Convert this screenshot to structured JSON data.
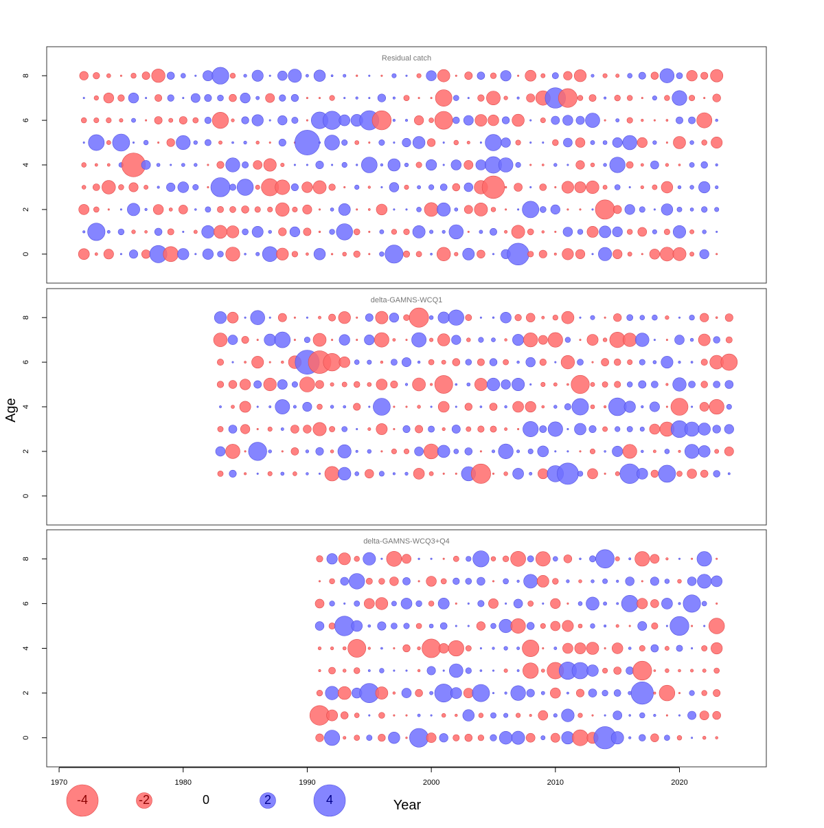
{
  "chart_data": [
    {
      "type": "scatter",
      "title": "Residual catch",
      "years": [
        1972,
        2023
      ],
      "ages": [
        0,
        8
      ],
      "xlim": [
        1969,
        2027
      ],
      "ylim": [
        -1.3,
        9.3
      ],
      "yticks": [
        0,
        2,
        4,
        6,
        8
      ],
      "seed": 11
    },
    {
      "type": "scatter",
      "title": "delta-GAMNS-WCQ1",
      "years": [
        1983,
        2024
      ],
      "ages": [
        1,
        8
      ],
      "xlim": [
        1969,
        2027
      ],
      "ylim": [
        -1.3,
        9.3
      ],
      "yticks": [
        0,
        2,
        4,
        6,
        8
      ],
      "seed": 23
    },
    {
      "type": "scatter",
      "title": "delta-GAMNS-WCQ3+Q4",
      "years": [
        1991,
        2023
      ],
      "ages": [
        0,
        8
      ],
      "xlim": [
        1969,
        2027
      ],
      "ylim": [
        -1.3,
        9.3
      ],
      "yticks": [
        0,
        2,
        4,
        6,
        8
      ],
      "seed": 37
    }
  ],
  "axes": {
    "xlabel": "Year",
    "ylabel": "Age",
    "xticks": [
      1970,
      1980,
      1990,
      2000,
      2010,
      2020
    ]
  },
  "legend": {
    "entries": [
      {
        "label": "-4",
        "value": -4
      },
      {
        "label": "-2",
        "value": -2
      },
      {
        "label": "0",
        "value": 0
      },
      {
        "label": "2",
        "value": 2
      },
      {
        "label": "4",
        "value": 4
      }
    ]
  },
  "colors": {
    "negative_fill": "#ff6b6b",
    "negative_edge": "#e04848",
    "positive_fill": "#7070ff",
    "positive_edge": "#5050e0",
    "panel_title": "#777777"
  }
}
